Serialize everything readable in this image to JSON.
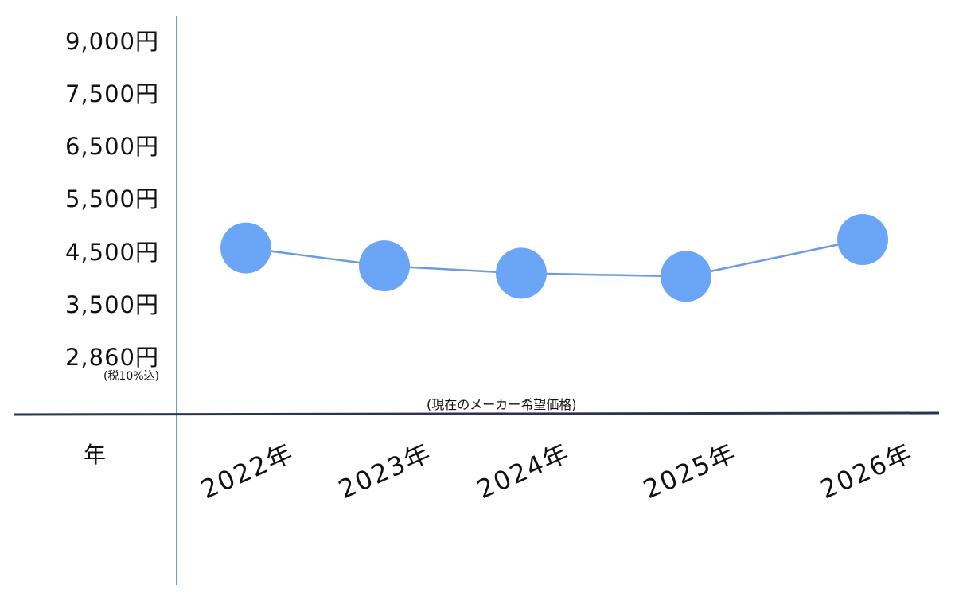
{
  "chart_data": {
    "type": "line",
    "title": "",
    "xlabel": "年",
    "ylabel": "",
    "y_tick_labels": [
      "2,860円",
      "3,500円",
      "4,500円",
      "5,500円",
      "6,500円",
      "7,500円",
      "9,000円"
    ],
    "y_tick_values": [
      2860,
      3500,
      4500,
      5500,
      6500,
      7500,
      9000
    ],
    "y_tick_note": "(税10%込)",
    "annotation": "(現在のメーカー希望価格)",
    "categories": [
      "2022年",
      "2023年",
      "2024年",
      "2025年",
      "2026年"
    ],
    "values": [
      4500,
      4160,
      4020,
      3960,
      4660
    ],
    "grid": false,
    "legend": "none",
    "colors": {
      "marker": "#6aa6f5",
      "line": "#6a9be0",
      "y_axis": "#6a9be0",
      "x_axis": "#2a3550"
    }
  }
}
